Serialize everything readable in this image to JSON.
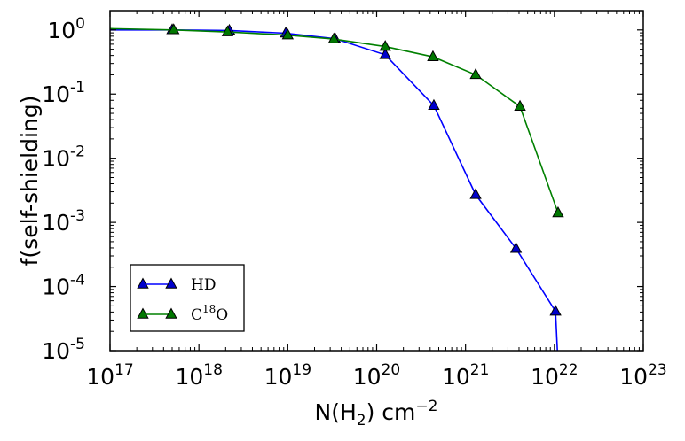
{
  "chart_data": {
    "type": "line",
    "xscale": "log",
    "yscale": "log",
    "xlim": [
      1e+17,
      1e+23
    ],
    "ylim": [
      1e-05,
      2
    ],
    "xlabel": {
      "base": "N(H",
      "sub": "2",
      "mid": ") cm",
      "sup": "−2"
    },
    "ylabel": "f(self-shielding)",
    "x_ticks": [
      {
        "base": "10",
        "exp": "17"
      },
      {
        "base": "10",
        "exp": "18"
      },
      {
        "base": "10",
        "exp": "19"
      },
      {
        "base": "10",
        "exp": "20"
      },
      {
        "base": "10",
        "exp": "21"
      },
      {
        "base": "10",
        "exp": "22"
      },
      {
        "base": "10",
        "exp": "23"
      }
    ],
    "y_ticks": [
      {
        "value": 1,
        "label": "10",
        "exp": "0"
      },
      {
        "value": 0.1,
        "label": "10",
        "exp": "-1"
      },
      {
        "value": 0.01,
        "label": "10",
        "exp": "-2"
      },
      {
        "value": 0.001,
        "label": "10",
        "exp": "-3"
      },
      {
        "value": 0.0001,
        "label": "10",
        "exp": "-4"
      },
      {
        "value": 1e-05,
        "label": "10",
        "exp": "-5"
      }
    ],
    "legend_position": "bottom-left",
    "series": [
      {
        "name": "HD",
        "label_base": "HD",
        "label_sup": "",
        "label_tail": "",
        "color": "#0000ff",
        "marker_color": "#0000cc",
        "x": [
          1e+17,
          5e+17,
          2.2e+18,
          9.5e+18,
          3.4e+19,
          1.25e+20,
          4.4e+20,
          1.3e+21,
          3.7e+21,
          1.03e+22,
          1.08e+22
        ],
        "y": [
          1.0,
          1.0,
          0.98,
          0.89,
          0.73,
          0.41,
          0.066,
          0.0027,
          0.00039,
          4.1e-05,
          1e-05
        ],
        "markers": [
          false,
          true,
          true,
          true,
          true,
          true,
          true,
          true,
          true,
          true,
          false
        ]
      },
      {
        "name": "C18O",
        "label_base": "C",
        "label_sup": "18",
        "label_tail": "O",
        "color": "#008000",
        "marker_color": "#007700",
        "x": [
          1e+17,
          5.2e+17,
          2.1e+18,
          1e+19,
          3.3e+19,
          1.25e+20,
          4.3e+20,
          1.3e+21,
          4.1e+21,
          1.1e+22
        ],
        "y": [
          1.05,
          1.0,
          0.93,
          0.83,
          0.72,
          0.55,
          0.38,
          0.2,
          0.064,
          0.0014
        ],
        "markers": [
          false,
          true,
          true,
          true,
          true,
          true,
          true,
          true,
          true,
          true
        ]
      }
    ]
  }
}
